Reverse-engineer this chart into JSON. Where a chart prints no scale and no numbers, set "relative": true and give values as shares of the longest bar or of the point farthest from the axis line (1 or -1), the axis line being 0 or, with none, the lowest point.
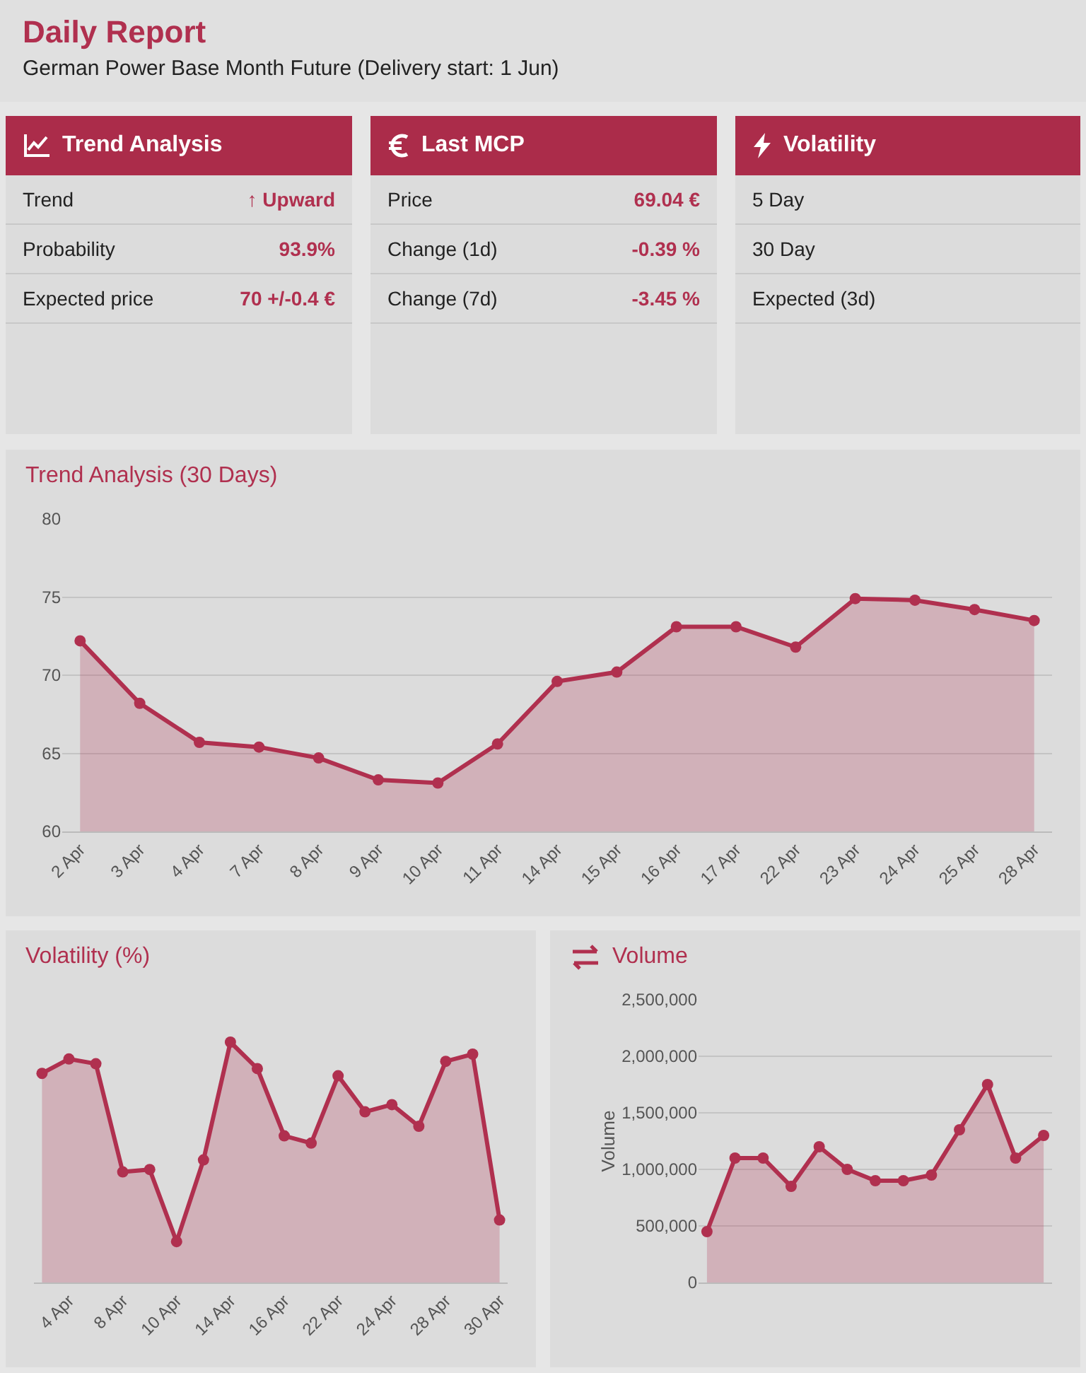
{
  "chart_data": [
    {
      "type": "other",
      "title": "Daily Report",
      "subtitle": "German Power Base Month Future (Delivery start: 1 Jun)"
    },
    {
      "type": "other",
      "title": "Trend Analysis",
      "categories": [
        "Trend",
        "Probability",
        "Expected price"
      ],
      "annotations": [
        "↑ Upward",
        "93.9%",
        "70 +/-0.4 €"
      ]
    },
    {
      "type": "other",
      "title": "Last MCP",
      "categories": [
        "Price",
        "Change (1d)",
        "Change (7d)"
      ],
      "annotations": [
        "69.04 €",
        "-0.39 %",
        "-3.45 %"
      ]
    },
    {
      "type": "other",
      "title": "Volatility",
      "categories": [
        "5 Day",
        "30 Day",
        "Expected (3d)"
      ]
    },
    {
      "type": "area",
      "title": "Trend Analysis (30 Days)",
      "categories": [
        "2 Apr",
        "3 Apr",
        "4 Apr",
        "7 Apr",
        "8 Apr",
        "9 Apr",
        "10 Apr",
        "11 Apr",
        "14 Apr",
        "15 Apr",
        "16 Apr",
        "17 Apr",
        "22 Apr",
        "23 Apr",
        "24 Apr",
        "25 Apr",
        "28 Apr"
      ],
      "series": [
        {
          "color": "#b0304f",
          "values": [
            72.2,
            68.2,
            65.7,
            65.4,
            64.7,
            63.3,
            63.1,
            65.6,
            69.6,
            70.2,
            73.1,
            73.1,
            71.8,
            74.9,
            74.8,
            74.2,
            73.5
          ]
        }
      ],
      "ylim": [
        60,
        80
      ],
      "yticks": [
        60,
        65,
        70,
        75,
        80
      ],
      "grid": "y",
      "marker": "circle"
    },
    {
      "type": "area",
      "title": "Volatility (%)",
      "relative": true,
      "categories": [
        null,
        "4 Apr",
        null,
        "8 Apr",
        null,
        "10 Apr",
        null,
        "14 Apr",
        null,
        "16 Apr",
        null,
        "22 Apr",
        null,
        "24 Apr",
        null,
        "28 Apr",
        null,
        "30 Apr"
      ],
      "series": [
        {
          "color": "#b0304f",
          "values": [
            0.87,
            0.93,
            0.91,
            0.46,
            0.47,
            0.17,
            0.51,
            1,
            0.89,
            0.61,
            0.58,
            0.86,
            0.71,
            0.74,
            0.65,
            0.92,
            0.95,
            0.26
          ]
        }
      ],
      "marker": "circle"
    },
    {
      "type": "area",
      "title": "Volume",
      "ylabel": "Volume",
      "categories": [
        null,
        null,
        null,
        null,
        null,
        null,
        null,
        null,
        null,
        null,
        null,
        null,
        null
      ],
      "series": [
        {
          "color": "#b0304f",
          "values": [
            450000,
            1100000,
            1100000,
            850000,
            1200000,
            1000000,
            900000,
            900000,
            950000,
            1350000,
            1750000,
            1100000,
            1300000
          ]
        }
      ],
      "ylim": [
        0,
        2500000
      ],
      "yticks": [
        0,
        {
          "value": 500000,
          "label": "500,000"
        },
        {
          "value": 1000000,
          "label": "1,000,000"
        },
        {
          "value": 1500000,
          "label": "1,500,000"
        },
        {
          "value": 2000000,
          "label": "2,000,000"
        },
        {
          "value": 2500000,
          "label": "2,500,000"
        }
      ],
      "grid": "y",
      "marker": "circle"
    }
  ]
}
